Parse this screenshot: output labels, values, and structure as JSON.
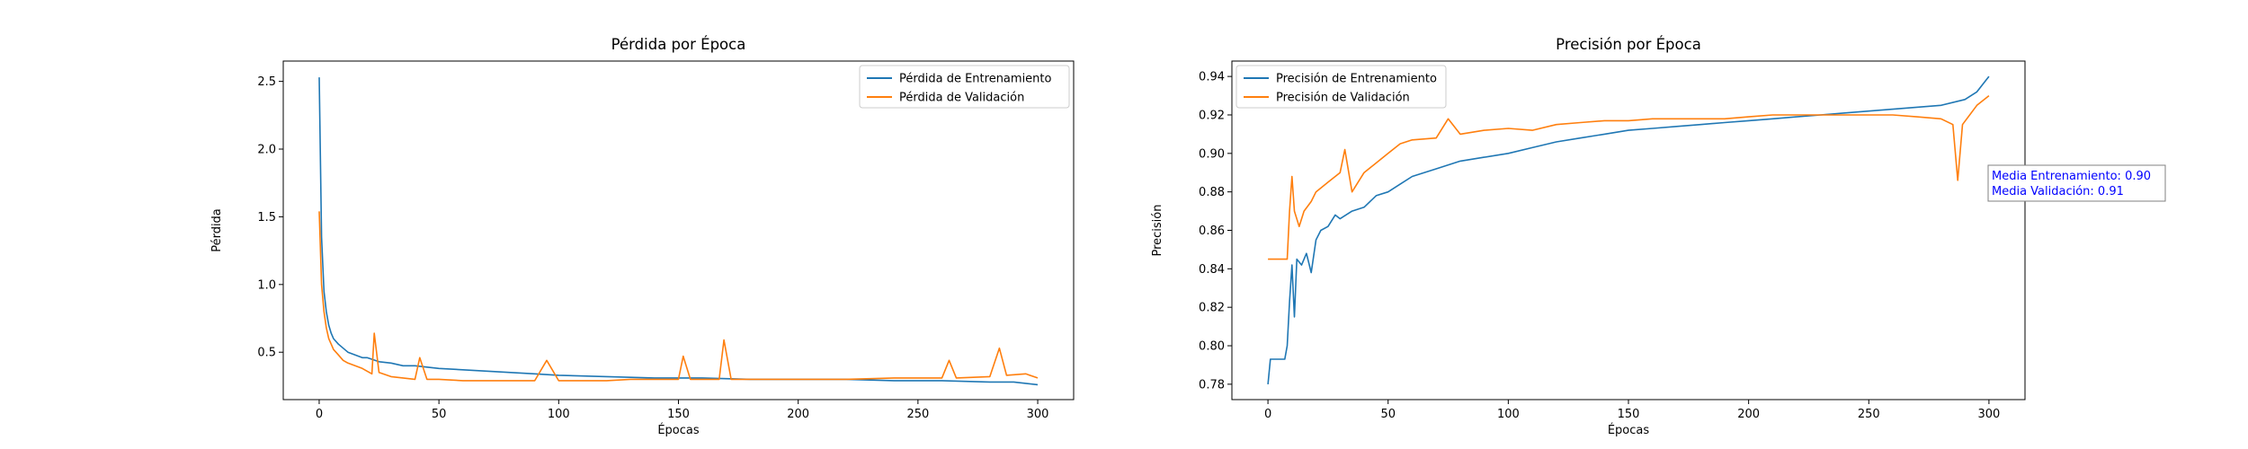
{
  "colors": {
    "train": "#1f77b4",
    "val": "#ff7f0e",
    "annotation": "#0000ff"
  },
  "chart_data": [
    {
      "type": "line",
      "title": "Pérdida por Época",
      "xlabel": "Épocas",
      "ylabel": "Pérdida",
      "xlim": [
        -15,
        315
      ],
      "ylim": [
        0.15,
        2.65
      ],
      "xticks": [
        0,
        50,
        100,
        150,
        200,
        250,
        300
      ],
      "yticks": [
        0.5,
        1.0,
        1.5,
        2.0,
        2.5
      ],
      "ytick_decimals": 1,
      "legend_position": "upper right",
      "grid": false,
      "series": [
        {
          "name": "Pérdida de Entrenamiento",
          "color_key": "train",
          "points": [
            [
              0,
              2.53
            ],
            [
              1,
              1.35
            ],
            [
              2,
              0.95
            ],
            [
              3,
              0.8
            ],
            [
              4,
              0.7
            ],
            [
              5,
              0.64
            ],
            [
              6,
              0.6
            ],
            [
              8,
              0.56
            ],
            [
              10,
              0.53
            ],
            [
              12,
              0.5
            ],
            [
              15,
              0.48
            ],
            [
              18,
              0.46
            ],
            [
              20,
              0.46
            ],
            [
              25,
              0.43
            ],
            [
              30,
              0.42
            ],
            [
              35,
              0.4
            ],
            [
              40,
              0.4
            ],
            [
              45,
              0.39
            ],
            [
              50,
              0.38
            ],
            [
              60,
              0.37
            ],
            [
              70,
              0.36
            ],
            [
              80,
              0.35
            ],
            [
              90,
              0.34
            ],
            [
              100,
              0.33
            ],
            [
              120,
              0.32
            ],
            [
              140,
              0.31
            ],
            [
              160,
              0.31
            ],
            [
              180,
              0.3
            ],
            [
              200,
              0.3
            ],
            [
              220,
              0.3
            ],
            [
              240,
              0.29
            ],
            [
              260,
              0.29
            ],
            [
              280,
              0.28
            ],
            [
              290,
              0.28
            ],
            [
              295,
              0.27
            ],
            [
              300,
              0.26
            ]
          ]
        },
        {
          "name": "Pérdida de Validación",
          "color_key": "val",
          "points": [
            [
              0,
              1.54
            ],
            [
              1,
              1.0
            ],
            [
              2,
              0.8
            ],
            [
              3,
              0.68
            ],
            [
              4,
              0.6
            ],
            [
              5,
              0.56
            ],
            [
              6,
              0.52
            ],
            [
              8,
              0.48
            ],
            [
              10,
              0.44
            ],
            [
              12,
              0.42
            ],
            [
              15,
              0.4
            ],
            [
              18,
              0.38
            ],
            [
              20,
              0.36
            ],
            [
              22,
              0.34
            ],
            [
              23,
              0.64
            ],
            [
              25,
              0.35
            ],
            [
              30,
              0.32
            ],
            [
              35,
              0.31
            ],
            [
              40,
              0.3
            ],
            [
              42,
              0.46
            ],
            [
              45,
              0.3
            ],
            [
              50,
              0.3
            ],
            [
              60,
              0.29
            ],
            [
              70,
              0.29
            ],
            [
              80,
              0.29
            ],
            [
              90,
              0.29
            ],
            [
              95,
              0.44
            ],
            [
              100,
              0.29
            ],
            [
              110,
              0.29
            ],
            [
              120,
              0.29
            ],
            [
              130,
              0.3
            ],
            [
              140,
              0.3
            ],
            [
              150,
              0.3
            ],
            [
              152,
              0.47
            ],
            [
              155,
              0.3
            ],
            [
              160,
              0.3
            ],
            [
              167,
              0.3
            ],
            [
              169,
              0.59
            ],
            [
              172,
              0.3
            ],
            [
              180,
              0.3
            ],
            [
              200,
              0.3
            ],
            [
              220,
              0.3
            ],
            [
              240,
              0.31
            ],
            [
              260,
              0.31
            ],
            [
              263,
              0.44
            ],
            [
              266,
              0.31
            ],
            [
              280,
              0.32
            ],
            [
              284,
              0.53
            ],
            [
              287,
              0.33
            ],
            [
              295,
              0.34
            ],
            [
              300,
              0.31
            ]
          ]
        }
      ]
    },
    {
      "type": "line",
      "title": "Precisión por Época",
      "xlabel": "Épocas",
      "ylabel": "Precisión",
      "xlim": [
        -15,
        315
      ],
      "ylim": [
        0.772,
        0.948
      ],
      "xticks": [
        0,
        50,
        100,
        150,
        200,
        250,
        300
      ],
      "yticks": [
        0.78,
        0.8,
        0.82,
        0.84,
        0.86,
        0.88,
        0.9,
        0.92,
        0.94
      ],
      "ytick_decimals": 2,
      "legend_position": "upper left",
      "grid": false,
      "annotation": [
        "Media Entrenamiento: 0.90",
        "Media Validación: 0.91"
      ],
      "series": [
        {
          "name": "Precisión de Entrenamiento",
          "color_key": "train",
          "points": [
            [
              0,
              0.78
            ],
            [
              1,
              0.793
            ],
            [
              3,
              0.793
            ],
            [
              5,
              0.793
            ],
            [
              7,
              0.793
            ],
            [
              8,
              0.8
            ],
            [
              9,
              0.823
            ],
            [
              10,
              0.842
            ],
            [
              11,
              0.815
            ],
            [
              12,
              0.845
            ],
            [
              14,
              0.842
            ],
            [
              16,
              0.848
            ],
            [
              18,
              0.838
            ],
            [
              20,
              0.855
            ],
            [
              22,
              0.86
            ],
            [
              25,
              0.862
            ],
            [
              28,
              0.868
            ],
            [
              30,
              0.866
            ],
            [
              35,
              0.87
            ],
            [
              40,
              0.872
            ],
            [
              45,
              0.878
            ],
            [
              50,
              0.88
            ],
            [
              55,
              0.884
            ],
            [
              60,
              0.888
            ],
            [
              70,
              0.892
            ],
            [
              80,
              0.896
            ],
            [
              90,
              0.898
            ],
            [
              100,
              0.9
            ],
            [
              110,
              0.903
            ],
            [
              120,
              0.906
            ],
            [
              130,
              0.908
            ],
            [
              140,
              0.91
            ],
            [
              150,
              0.912
            ],
            [
              160,
              0.913
            ],
            [
              170,
              0.914
            ],
            [
              180,
              0.915
            ],
            [
              190,
              0.916
            ],
            [
              200,
              0.917
            ],
            [
              210,
              0.918
            ],
            [
              220,
              0.919
            ],
            [
              230,
              0.92
            ],
            [
              240,
              0.921
            ],
            [
              250,
              0.922
            ],
            [
              260,
              0.923
            ],
            [
              270,
              0.924
            ],
            [
              280,
              0.925
            ],
            [
              290,
              0.928
            ],
            [
              295,
              0.932
            ],
            [
              300,
              0.94
            ]
          ]
        },
        {
          "name": "Precisión de Validación",
          "color_key": "val",
          "points": [
            [
              0,
              0.845
            ],
            [
              2,
              0.845
            ],
            [
              4,
              0.845
            ],
            [
              6,
              0.845
            ],
            [
              8,
              0.845
            ],
            [
              9,
              0.87
            ],
            [
              10,
              0.888
            ],
            [
              11,
              0.87
            ],
            [
              13,
              0.862
            ],
            [
              15,
              0.87
            ],
            [
              18,
              0.875
            ],
            [
              20,
              0.88
            ],
            [
              25,
              0.885
            ],
            [
              30,
              0.89
            ],
            [
              32,
              0.902
            ],
            [
              35,
              0.88
            ],
            [
              40,
              0.89
            ],
            [
              45,
              0.895
            ],
            [
              50,
              0.9
            ],
            [
              55,
              0.905
            ],
            [
              60,
              0.907
            ],
            [
              70,
              0.908
            ],
            [
              75,
              0.918
            ],
            [
              80,
              0.91
            ],
            [
              90,
              0.912
            ],
            [
              100,
              0.913
            ],
            [
              110,
              0.912
            ],
            [
              120,
              0.915
            ],
            [
              130,
              0.916
            ],
            [
              140,
              0.917
            ],
            [
              150,
              0.917
            ],
            [
              160,
              0.918
            ],
            [
              170,
              0.918
            ],
            [
              180,
              0.918
            ],
            [
              190,
              0.918
            ],
            [
              200,
              0.919
            ],
            [
              210,
              0.92
            ],
            [
              220,
              0.92
            ],
            [
              230,
              0.92
            ],
            [
              240,
              0.92
            ],
            [
              250,
              0.92
            ],
            [
              260,
              0.92
            ],
            [
              270,
              0.919
            ],
            [
              280,
              0.918
            ],
            [
              285,
              0.915
            ],
            [
              287,
              0.886
            ],
            [
              289,
              0.915
            ],
            [
              295,
              0.925
            ],
            [
              300,
              0.93
            ]
          ]
        }
      ]
    }
  ]
}
